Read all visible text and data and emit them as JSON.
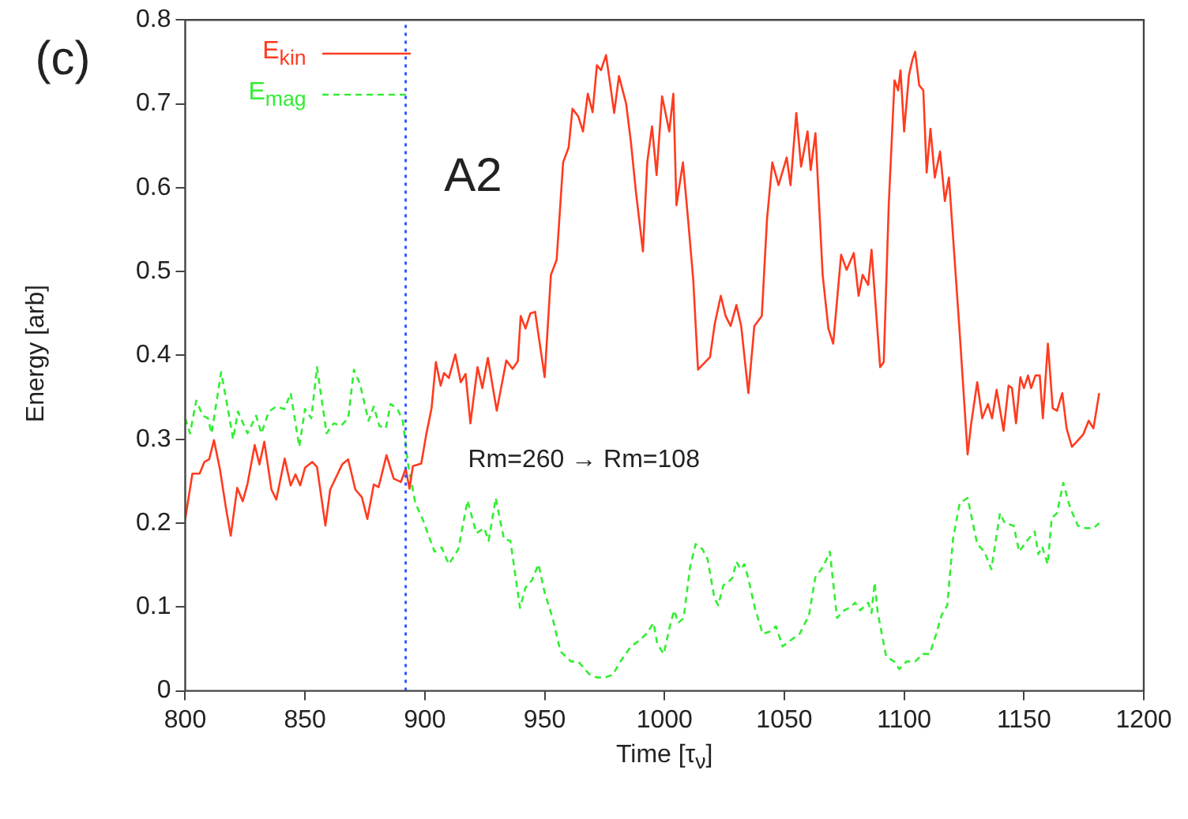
{
  "chart_data": {
    "type": "line",
    "xlabel": "Time [τ$_{ν}$]",
    "ylabel": "Energy [arb]",
    "xlim": [
      800,
      1200
    ],
    "ylim": [
      0,
      0.8
    ],
    "xticks": [
      800,
      850,
      900,
      950,
      1000,
      1050,
      1100,
      1150,
      1200
    ],
    "yticks": [
      0,
      0.1,
      0.2,
      0.3,
      0.4,
      0.5,
      0.6,
      0.7,
      0.8
    ],
    "grid": false,
    "legend": "top left",
    "marker": "none",
    "annotations": [
      "(c)",
      "A2",
      "Rm=260 → Rm=108"
    ],
    "ref_lines": [
      {
        "axis": "x",
        "value": 892,
        "color": "#3355ff",
        "line_style": "dotted"
      }
    ],
    "series": [
      {
        "name": "E$_{kin}$",
        "color": "#ff3b1f",
        "line_style": "solid",
        "x": [
          800,
          803,
          806,
          808,
          810,
          812,
          814.5,
          817,
          819,
          821.7,
          824,
          826,
          829,
          831,
          833,
          836,
          838,
          841.5,
          844,
          846,
          848,
          850,
          853,
          855,
          858.5,
          860.5,
          863,
          865.5,
          868,
          871,
          873.7,
          876,
          878.7,
          880.7,
          884,
          887,
          890,
          892,
          893.6,
          895,
          898.5,
          900.6,
          902.8,
          904.6,
          906.6,
          908,
          910,
          912.7,
          915,
          917,
          919,
          922,
          924,
          926.3,
          930,
          934,
          936.6,
          938.8,
          940,
          942,
          944,
          946,
          950,
          952.6,
          955,
          957.7,
          960,
          961.6,
          964,
          966,
          968,
          970,
          971.8,
          973.5,
          975.6,
          977.4,
          979,
          981,
          984,
          986,
          988,
          991,
          992.8,
          994.8,
          996.7,
          999,
          1002,
          1003.7,
          1005,
          1007.7,
          1010,
          1012,
          1014,
          1017,
          1019,
          1021,
          1023.5,
          1025.5,
          1027.6,
          1030,
          1032,
          1035,
          1037.5,
          1040.6,
          1042.8,
          1045,
          1047.6,
          1051,
          1052.6,
          1055,
          1057,
          1059.7,
          1061,
          1063,
          1066,
          1068.4,
          1070.4,
          1073.7,
          1076,
          1079,
          1081,
          1082.7,
          1085,
          1086.4,
          1090,
          1091.5,
          1093.6,
          1096,
          1097.5,
          1098.5,
          1100,
          1102,
          1103.5,
          1104.6,
          1106.3,
          1108,
          1109.4,
          1111,
          1112.8,
          1115,
          1117,
          1118.7,
          1123,
          1126.5,
          1128,
          1130.5,
          1132.6,
          1135,
          1136.7,
          1138.6,
          1141.5,
          1143.6,
          1145,
          1146.7,
          1148.5,
          1150,
          1151.7,
          1153,
          1154.8,
          1156.6,
          1157.9,
          1160,
          1162,
          1163.8,
          1166,
          1167.8,
          1170,
          1172,
          1174.8,
          1177,
          1179,
          1181.4
        ],
        "values": [
          0.205,
          0.259,
          0.259,
          0.273,
          0.276,
          0.299,
          0.264,
          0.218,
          0.185,
          0.242,
          0.226,
          0.247,
          0.293,
          0.27,
          0.297,
          0.24,
          0.228,
          0.277,
          0.245,
          0.258,
          0.245,
          0.266,
          0.273,
          0.267,
          0.197,
          0.24,
          0.255,
          0.27,
          0.276,
          0.24,
          0.231,
          0.205,
          0.246,
          0.243,
          0.281,
          0.253,
          0.249,
          0.265,
          0.241,
          0.268,
          0.271,
          0.306,
          0.337,
          0.392,
          0.364,
          0.379,
          0.373,
          0.401,
          0.368,
          0.378,
          0.319,
          0.386,
          0.361,
          0.397,
          0.334,
          0.394,
          0.384,
          0.393,
          0.447,
          0.432,
          0.45,
          0.452,
          0.374,
          0.496,
          0.514,
          0.63,
          0.648,
          0.694,
          0.685,
          0.667,
          0.712,
          0.69,
          0.746,
          0.74,
          0.758,
          0.722,
          0.689,
          0.733,
          0.7,
          0.654,
          0.597,
          0.524,
          0.63,
          0.673,
          0.615,
          0.709,
          0.667,
          0.712,
          0.579,
          0.63,
          0.557,
          0.49,
          0.383,
          0.392,
          0.398,
          0.438,
          0.471,
          0.447,
          0.435,
          0.46,
          0.435,
          0.355,
          0.435,
          0.447,
          0.563,
          0.63,
          0.603,
          0.636,
          0.603,
          0.689,
          0.625,
          0.667,
          0.621,
          0.665,
          0.496,
          0.432,
          0.414,
          0.52,
          0.502,
          0.522,
          0.471,
          0.496,
          0.484,
          0.526,
          0.386,
          0.392,
          0.581,
          0.728,
          0.716,
          0.74,
          0.667,
          0.734,
          0.753,
          0.762,
          0.722,
          0.716,
          0.618,
          0.67,
          0.612,
          0.643,
          0.584,
          0.612,
          0.435,
          0.282,
          0.319,
          0.368,
          0.325,
          0.342,
          0.325,
          0.359,
          0.31,
          0.364,
          0.361,
          0.319,
          0.374,
          0.361,
          0.376,
          0.361,
          0.376,
          0.376,
          0.325,
          0.414,
          0.337,
          0.334,
          0.355,
          0.313,
          0.291,
          0.297,
          0.306,
          0.322,
          0.313,
          0.355
        ]
      },
      {
        "name": "E$_{mag}$",
        "color": "#33ee33",
        "line_style": "dashed",
        "x": [
          800,
          802,
          804.6,
          807.4,
          809.5,
          811,
          815,
          817,
          820,
          822,
          826,
          829.6,
          831.8,
          834.9,
          838,
          841.4,
          844,
          847.6,
          850,
          852.6,
          855,
          859,
          862,
          865,
          868,
          870.4,
          873,
          876.5,
          878.7,
          881,
          883.7,
          885.7,
          888.6,
          890.8,
          893,
          896,
          899.3,
          904,
          907,
          910,
          914,
          917.8,
          921.5,
          924.8,
          926.6,
          929.6,
          933,
          935.7,
          939.7,
          942,
          944.7,
          947.4,
          950,
          953.3,
          956.6,
          961,
          964,
          968.6,
          971.8,
          975,
          978.4,
          981.6,
          986,
          989,
          992.5,
          995.4,
          997,
          999.7,
          1002,
          1004,
          1005.8,
          1008,
          1010.7,
          1013,
          1015.8,
          1018,
          1020.8,
          1022.4,
          1024.6,
          1026.8,
          1028.4,
          1030,
          1031.8,
          1033.3,
          1034.9,
          1037.7,
          1041,
          1044.3,
          1046.5,
          1049.3,
          1052,
          1056.4,
          1060.3,
          1062.9,
          1066.2,
          1069,
          1072,
          1075,
          1077.3,
          1079.5,
          1081.7,
          1085,
          1086.4,
          1087.7,
          1089,
          1092.5,
          1095.8,
          1098,
          1101,
          1104.6,
          1107.8,
          1110.7,
          1113.4,
          1115.6,
          1118,
          1120.4,
          1123.2,
          1126.5,
          1130.5,
          1133.5,
          1136.4,
          1140,
          1142,
          1145.7,
          1148,
          1151,
          1154.5,
          1156,
          1157.6,
          1159.9,
          1161.6,
          1163.8,
          1166.4,
          1169.3,
          1172.5,
          1175.8,
          1179,
          1181.4
        ],
        "values": [
          0.325,
          0.307,
          0.346,
          0.328,
          0.325,
          0.307,
          0.38,
          0.349,
          0.3,
          0.333,
          0.307,
          0.328,
          0.307,
          0.333,
          0.339,
          0.336,
          0.355,
          0.291,
          0.336,
          0.325,
          0.386,
          0.307,
          0.319,
          0.316,
          0.325,
          0.383,
          0.365,
          0.322,
          0.339,
          0.316,
          0.313,
          0.342,
          0.336,
          0.322,
          0.27,
          0.224,
          0.203,
          0.166,
          0.171,
          0.151,
          0.169,
          0.227,
          0.188,
          0.194,
          0.179,
          0.23,
          0.181,
          0.179,
          0.099,
          0.123,
          0.132,
          0.151,
          0.117,
          0.087,
          0.047,
          0.035,
          0.035,
          0.02,
          0.016,
          0.016,
          0.019,
          0.035,
          0.053,
          0.059,
          0.068,
          0.081,
          0.056,
          0.044,
          0.074,
          0.096,
          0.081,
          0.087,
          0.148,
          0.175,
          0.169,
          0.157,
          0.111,
          0.102,
          0.126,
          0.13,
          0.135,
          0.154,
          0.145,
          0.151,
          0.135,
          0.099,
          0.068,
          0.071,
          0.077,
          0.053,
          0.059,
          0.068,
          0.09,
          0.135,
          0.148,
          0.166,
          0.087,
          0.096,
          0.099,
          0.105,
          0.096,
          0.105,
          0.093,
          0.129,
          0.093,
          0.041,
          0.035,
          0.026,
          0.035,
          0.035,
          0.044,
          0.044,
          0.068,
          0.09,
          0.102,
          0.181,
          0.224,
          0.23,
          0.175,
          0.166,
          0.145,
          0.212,
          0.2,
          0.197,
          0.166,
          0.178,
          0.19,
          0.163,
          0.172,
          0.151,
          0.206,
          0.212,
          0.248,
          0.218,
          0.197,
          0.194,
          0.194,
          0.2
        ]
      }
    ]
  }
}
